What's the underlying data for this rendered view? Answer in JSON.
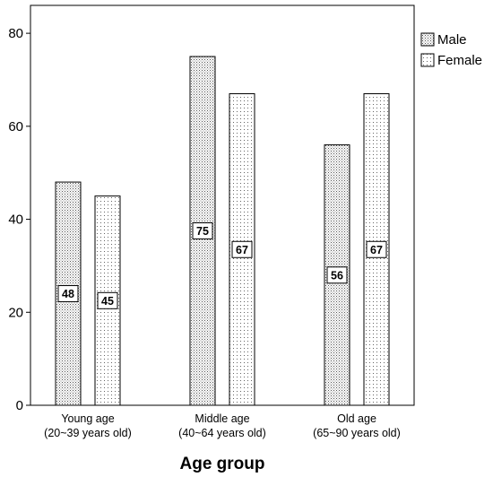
{
  "chart_data": {
    "type": "bar",
    "categories": [
      [
        "Young age",
        "(20~39 years old)"
      ],
      [
        "Middle age",
        "(40~64 years old)"
      ],
      [
        "Old age",
        "(65~90 years old)"
      ]
    ],
    "series": [
      {
        "name": "Male",
        "values": [
          48,
          75,
          56
        ],
        "pattern": "dots-dense"
      },
      {
        "name": "Female",
        "values": [
          45,
          67,
          67
        ],
        "pattern": "dots-sparse"
      }
    ],
    "xlabel": "Age group",
    "ylabel": "",
    "ylim": [
      0,
      86
    ],
    "yticks": [
      0,
      20,
      40,
      60,
      80
    ],
    "legend_position": "top-right",
    "grid": false,
    "data_labels": true,
    "colors": {
      "bar_stroke": "#000000",
      "dot": "#555555",
      "background": "#ffffff"
    }
  }
}
